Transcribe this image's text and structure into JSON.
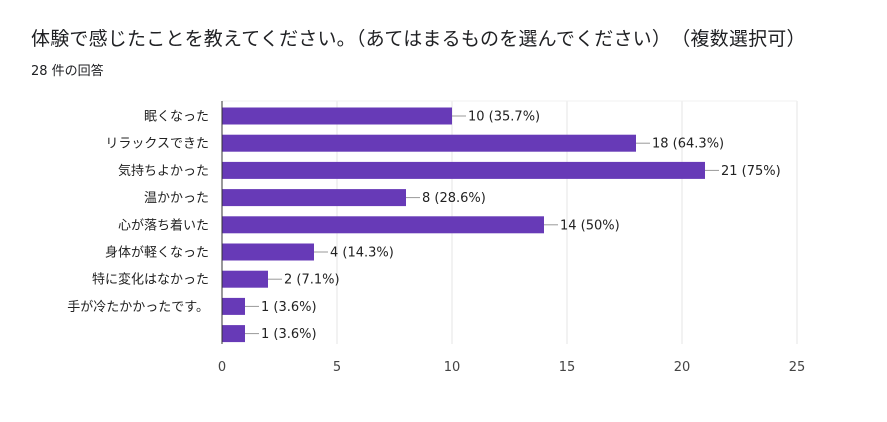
{
  "header": {
    "title": "体験で感じたことを教えてください。（あてはまるものを選んでください）　（複数選択可）",
    "response_count": "28 件の回答"
  },
  "chart_data": {
    "type": "bar",
    "orientation": "horizontal",
    "bar_color": "#673ab7",
    "categories": [
      "眠くなった",
      "リラックスできた",
      "気持ちよかった",
      "温かかった",
      "心が落ち着いた",
      "身体が軽くなった",
      "特に変化はなかった",
      "手が冷たかかったです。",
      ""
    ],
    "values": [
      10,
      18,
      21,
      8,
      14,
      4,
      2,
      1,
      1
    ],
    "value_labels": [
      "10 (35.7%)",
      "18 (64.3%)",
      "21 (75%)",
      "8 (28.6%)",
      "14 (50%)",
      "4 (14.3%)",
      "2 (7.1%)",
      "1 (3.6%)",
      "1 (3.6%)"
    ],
    "xlim": [
      0,
      25
    ],
    "xticks": [
      0,
      5,
      10,
      15,
      20,
      25
    ],
    "grid": true
  }
}
